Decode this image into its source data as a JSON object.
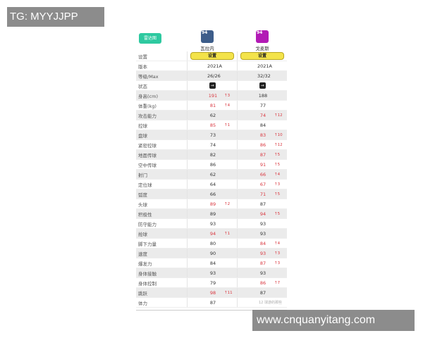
{
  "radar_button": "雷达图",
  "players": [
    {
      "name": "瓦拉内",
      "rating": "94",
      "color": "#3d5d8a"
    },
    {
      "name": "戈麦斯",
      "rating": "94",
      "color": "#b21ab5"
    }
  ],
  "rows": [
    {
      "label": "设置",
      "type": "button",
      "values": [
        "设置",
        "设置"
      ]
    },
    {
      "label": "版本",
      "values": [
        {
          "v": "2021A"
        },
        {
          "v": "2021A"
        }
      ]
    },
    {
      "label": "等级/Max",
      "values": [
        {
          "v": "26/26"
        },
        {
          "v": "32/32"
        }
      ]
    },
    {
      "label": "状态",
      "type": "status",
      "values": [
        "→",
        "→"
      ]
    },
    {
      "label": "身高(cm)",
      "values": [
        {
          "v": "191",
          "d": "↑3"
        },
        {
          "v": "188"
        }
      ]
    },
    {
      "label": "体重(kg)",
      "values": [
        {
          "v": "81",
          "d": "↑4"
        },
        {
          "v": "77"
        }
      ]
    },
    {
      "label": "攻击能力",
      "values": [
        {
          "v": "62"
        },
        {
          "v": "74",
          "d": "↑12"
        }
      ]
    },
    {
      "label": "控球",
      "values": [
        {
          "v": "85",
          "d": "↑1"
        },
        {
          "v": "84"
        }
      ]
    },
    {
      "label": "盘球",
      "values": [
        {
          "v": "73"
        },
        {
          "v": "83",
          "d": "↑10"
        }
      ]
    },
    {
      "label": "紧密控球",
      "values": [
        {
          "v": "74"
        },
        {
          "v": "86",
          "d": "↑12"
        }
      ]
    },
    {
      "label": "地面传球",
      "values": [
        {
          "v": "82"
        },
        {
          "v": "87",
          "d": "↑5"
        }
      ]
    },
    {
      "label": "空中传球",
      "values": [
        {
          "v": "86"
        },
        {
          "v": "91",
          "d": "↑5"
        }
      ]
    },
    {
      "label": "射门",
      "values": [
        {
          "v": "62"
        },
        {
          "v": "66",
          "d": "↑4"
        }
      ]
    },
    {
      "label": "定位球",
      "values": [
        {
          "v": "64"
        },
        {
          "v": "67",
          "d": "↑3"
        }
      ]
    },
    {
      "label": "弧度",
      "values": [
        {
          "v": "66"
        },
        {
          "v": "71",
          "d": "↑5"
        }
      ]
    },
    {
      "label": "头球",
      "values": [
        {
          "v": "89",
          "d": "↑2"
        },
        {
          "v": "87"
        }
      ]
    },
    {
      "label": "积极性",
      "values": [
        {
          "v": "89"
        },
        {
          "v": "94",
          "d": "↑5"
        }
      ]
    },
    {
      "label": "防守能力",
      "values": [
        {
          "v": "93"
        },
        {
          "v": "93"
        }
      ]
    },
    {
      "label": "抢球",
      "values": [
        {
          "v": "94",
          "d": "↑1"
        },
        {
          "v": "93"
        }
      ]
    },
    {
      "label": "脚下力量",
      "values": [
        {
          "v": "80"
        },
        {
          "v": "84",
          "d": "↑4"
        }
      ]
    },
    {
      "label": "速度",
      "values": [
        {
          "v": "90"
        },
        {
          "v": "93",
          "d": "↑3"
        }
      ]
    },
    {
      "label": "爆发力",
      "values": [
        {
          "v": "84"
        },
        {
          "v": "87",
          "d": "↑3"
        }
      ]
    },
    {
      "label": "身体接触",
      "values": [
        {
          "v": "93"
        },
        {
          "v": "93"
        }
      ]
    },
    {
      "label": "身体控制",
      "values": [
        {
          "v": "79"
        },
        {
          "v": "86",
          "d": "↑7"
        }
      ]
    },
    {
      "label": "跳跃",
      "values": [
        {
          "v": "98",
          "d": "↑11"
        },
        {
          "v": "87"
        }
      ]
    },
    {
      "label": "体力",
      "values": [
        {
          "v": "87"
        },
        {
          "v": ""
        }
      ]
    }
  ],
  "wechat_watermark": "12 球游的那些",
  "watermark_top": "TG: MYYJJPP",
  "watermark_bottom": "www.cnquanyitang.com"
}
